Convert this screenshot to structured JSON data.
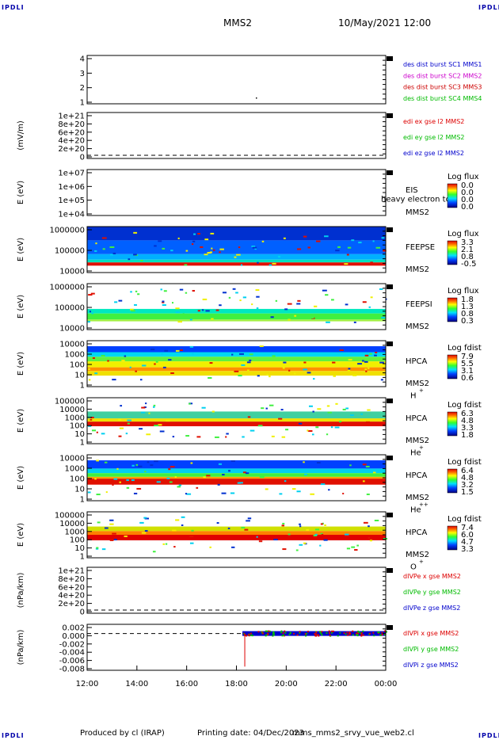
{
  "corner_mark": "IPDLI",
  "header": {
    "spacecraft": "MMS2",
    "datetime": "10/May/2021 12:00"
  },
  "footer": {
    "produced_by": "Produced by cl (IRAP)",
    "printing_date": "Printing date: 04/Dec/2023",
    "script_name": "mms_mms2_srvy_vue_web2.cl"
  },
  "colors": {
    "mms1": "#0000cc",
    "mms2": "#cc00cc",
    "mms3": "#cc0000",
    "mms4": "#00bb00",
    "red": "#dd0000",
    "green": "#00bb00",
    "blue": "#0000cc"
  },
  "chart_data": [
    {
      "id": "des",
      "type": "line",
      "ylabels": [
        "1",
        "2",
        "3",
        "4"
      ],
      "legend": [
        {
          "name": "des dist burst SC1 MMS1",
          "color": "#0000cc"
        },
        {
          "name": "des dist burst SC2 MMS2",
          "color": "#cc00cc"
        },
        {
          "name": "des dist burst SC3 MMS3",
          "color": "#cc0000"
        },
        {
          "name": "des dist burst SC4 MMS4",
          "color": "#00bb00"
        }
      ]
    },
    {
      "id": "edi",
      "type": "line",
      "ylabel": "(mV/m)",
      "ylabels": [
        "0",
        "2e+20",
        "4e+20",
        "6e+20",
        "8e+20",
        "1e+21"
      ],
      "legend": [
        {
          "name": "edi ex gse l2 MMS2",
          "color": "#dd0000"
        },
        {
          "name": "edi ey gse l2 MMS2",
          "color": "#00bb00"
        },
        {
          "name": "edi ez gse l2 MMS2",
          "color": "#0000cc"
        }
      ]
    },
    {
      "id": "eis",
      "type": "heatmap",
      "ylabel": "E (eV)",
      "ylabels": [
        "1e+04",
        "1e+05",
        "1e+06",
        "1e+07"
      ],
      "labels": [
        "EIS",
        "MMS2"
      ],
      "overlay": "heavy electron to",
      "cbar_title": "Log flux",
      "cbar_ticks": [
        "0.0",
        "0.0",
        "0.0",
        "0.0"
      ]
    },
    {
      "id": "feepse",
      "type": "heatmap",
      "ylabel": "E (eV)",
      "ylabels": [
        "10000",
        "100000",
        "1000000"
      ],
      "labels": [
        "FEEPSE",
        "MMS2"
      ],
      "cbar_title": "Log flux",
      "cbar_ticks": [
        "3.3",
        "2.1",
        "0.8",
        "-0.5"
      ]
    },
    {
      "id": "feepsi",
      "type": "heatmap",
      "ylabel": "E (eV)",
      "ylabels": [
        "10000",
        "100000",
        "1000000"
      ],
      "labels": [
        "FEEPSI",
        "MMS2"
      ],
      "cbar_title": "Log flux",
      "cbar_ticks": [
        "1.8",
        "1.3",
        "0.8",
        "0.3"
      ]
    },
    {
      "id": "hpca_h",
      "type": "heatmap",
      "ylabel": "E (eV)",
      "ylabels": [
        "1",
        "10",
        "100",
        "1000",
        "10000"
      ],
      "labels": [
        "HPCA",
        "MMS2",
        "H"
      ],
      "sup": "+",
      "cbar_title": "Log fdist",
      "cbar_ticks": [
        "7.9",
        "5.5",
        "3.1",
        "0.6"
      ]
    },
    {
      "id": "hpca_he",
      "type": "heatmap",
      "ylabel": "E (eV)",
      "ylabels": [
        "1",
        "10",
        "100",
        "1000",
        "10000",
        "100000"
      ],
      "labels": [
        "HPCA",
        "MMS2",
        "He"
      ],
      "sup": "+",
      "cbar_title": "Log fdist",
      "cbar_ticks": [
        "6.3",
        "4.8",
        "3.3",
        "1.8"
      ]
    },
    {
      "id": "hpca_hepp",
      "type": "heatmap",
      "ylabel": "E (eV)",
      "ylabels": [
        "1",
        "10",
        "100",
        "1000",
        "10000"
      ],
      "labels": [
        "HPCA",
        "MMS2",
        "He"
      ],
      "sup": "++",
      "cbar_title": "Log fdist",
      "cbar_ticks": [
        "6.4",
        "4.8",
        "3.2",
        "1.5"
      ]
    },
    {
      "id": "hpca_o",
      "type": "heatmap",
      "ylabel": "E (eV)",
      "ylabels": [
        "1",
        "10",
        "100",
        "1000",
        "10000",
        "100000"
      ],
      "labels": [
        "HPCA",
        "MMS2",
        "O"
      ],
      "sup": "+",
      "cbar_title": "Log fdist",
      "cbar_ticks": [
        "7.4",
        "6.0",
        "4.7",
        "3.3"
      ]
    },
    {
      "id": "divpe",
      "type": "line",
      "ylabel": "(nPa/km)",
      "ylabels": [
        "0",
        "2e+20",
        "4e+20",
        "6e+20",
        "8e+20",
        "1e+21"
      ],
      "legend": [
        {
          "name": "dIVPe x gse MMS2",
          "color": "#dd0000"
        },
        {
          "name": "dIVPe y gse MMS2",
          "color": "#00bb00"
        },
        {
          "name": "dIVPe z gse MMS2",
          "color": "#0000cc"
        }
      ]
    },
    {
      "id": "divpi",
      "type": "line",
      "ylabel": "(nPa/km)",
      "ylabels": [
        "-0.008",
        "-0.006",
        "-0.004",
        "-0.002",
        "0.000",
        "0.002"
      ],
      "legend": [
        {
          "name": "dIVPi x gse MMS2",
          "color": "#dd0000"
        },
        {
          "name": "dIVPi y gse MMS2",
          "color": "#00bb00"
        },
        {
          "name": "dIVPi z gse MMS2",
          "color": "#0000cc"
        }
      ]
    }
  ],
  "xaxis": {
    "ticks": [
      "12:00",
      "14:00",
      "16:00",
      "18:00",
      "20:00",
      "22:00",
      "00:00"
    ]
  }
}
